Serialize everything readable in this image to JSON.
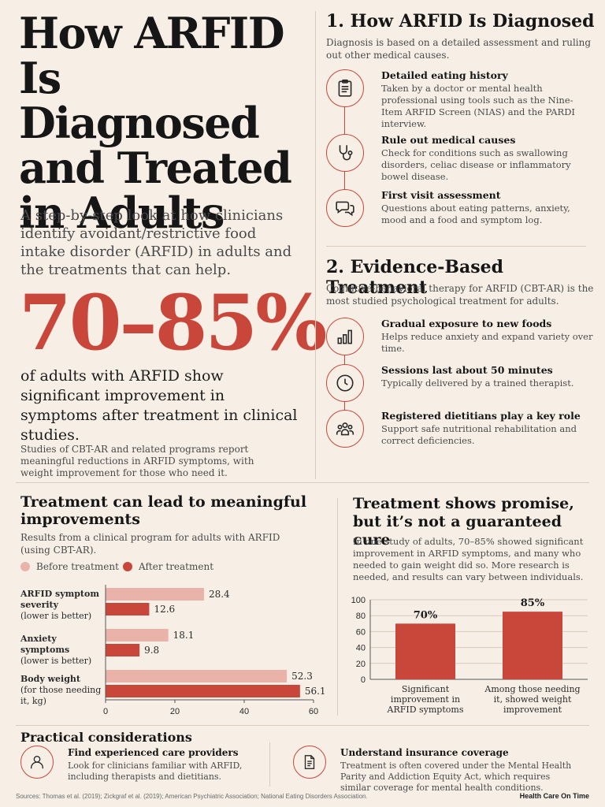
{
  "hero": {
    "title": "How ARFID Is Diagnosed and Treated in Adults",
    "subtitle": "A step-by-step look at how clinicians identify avoidant/restrictive food intake disorder (ARFID) in adults and the treatments that can help.",
    "stat": "70–85%",
    "stat_text": "of adults with ARFID show significant improvement in symptoms after treatment in clinical studies.",
    "stat_note": "Studies of CBT-AR and related programs report meaningful reductions in ARFID symptoms, with weight improvement for those who need it."
  },
  "diagnosis": {
    "title": "1. How ARFID Is Diagnosed",
    "desc": "Diagnosis is based on a detailed assessment and ruling out other medical causes.",
    "items": [
      {
        "icon": "clipboard-icon",
        "title": "Detailed eating history",
        "text": "Taken by a doctor or mental health professional using tools such as the Nine-Item ARFID Screen (NIAS) and the PARDI interview."
      },
      {
        "icon": "stethoscope-icon",
        "title": "Rule out medical causes",
        "text": "Check for conditions such as swallowing disorders, celiac disease or inflammatory bowel disease."
      },
      {
        "icon": "chat-bubbles-icon",
        "title": "First visit assessment",
        "text": "Questions about eating patterns, anxiety, mood and a food and symptom log."
      }
    ]
  },
  "treatment": {
    "title": "2. Evidence-Based Treatment",
    "desc": "Cognitive-behavioral therapy for ARFID (CBT-AR) is the most studied psychological treatment for adults.",
    "items": [
      {
        "icon": "bar-chart-icon",
        "title": "Gradual exposure to new foods",
        "text": "Helps reduce anxiety and expand variety over time."
      },
      {
        "icon": "clock-icon",
        "title": "Sessions last about 50 minutes",
        "text": "Typically delivered by a trained therapist."
      },
      {
        "icon": "people-group-icon",
        "title": "Registered dietitians play a key role",
        "text": "Support safe nutritional rehabilitation and correct deficiencies."
      }
    ]
  },
  "bar_chart": {
    "title": "Treatment can lead to meaningful improvements",
    "desc": "Results from a clinical program for adults with ARFID (using CBT-AR).",
    "legend_before": "Before treatment",
    "legend_after": "After treatment",
    "cat_labels": [
      {
        "name": "ARFID symptom severity",
        "note": "(lower is better)"
      },
      {
        "name": "Anxiety symptoms",
        "note": "(lower is better)"
      },
      {
        "name": "Body weight",
        "note": "(for those needing it, kg)"
      }
    ],
    "colors": {
      "before": "#eab3a9",
      "after": "#c8473a"
    }
  },
  "promise": {
    "title": "Treatment shows promise, but it’s not a guaranteed cure",
    "desc": "In one study of adults, 70–85% showed significant improvement in ARFID symptoms, and many who needed to gain weight did so. More research is needed, and results can vary between individuals."
  },
  "chart_data": [
    {
      "type": "bar",
      "orientation": "horizontal",
      "categories": [
        "ARFID symptom severity (lower is better)",
        "Anxiety symptoms (lower is better)",
        "Body weight (for those needing it, kg)"
      ],
      "series": [
        {
          "name": "Before treatment",
          "values": [
            28.4,
            18.1,
            52.3
          ]
        },
        {
          "name": "After treatment",
          "values": [
            12.6,
            9.8,
            56.1
          ]
        }
      ],
      "xlim": [
        0,
        60
      ],
      "xticks": [
        0,
        20,
        40,
        60
      ],
      "legend": "top"
    },
    {
      "type": "bar",
      "categories": [
        "Significant improvement in ARFID symptoms",
        "Among those needing it, showed weight improvement"
      ],
      "values": [
        70,
        85
      ],
      "value_labels": [
        "70%",
        "85%"
      ],
      "ylim": [
        0,
        100
      ],
      "yticks": [
        0,
        20,
        40,
        60,
        80,
        100
      ],
      "grid": true
    }
  ],
  "practical": {
    "title": "Practical considerations",
    "items": [
      {
        "icon": "person-icon",
        "title": "Find experienced care providers",
        "text": "Look for clinicians familiar with ARFID, including therapists and dietitians."
      },
      {
        "icon": "document-icon",
        "title": "Understand insurance coverage",
        "text": "Treatment is often covered under the Mental Health Parity and Addiction Equity Act, which requires similar coverage for mental health conditions."
      }
    ]
  },
  "footer": {
    "sources": "Sources: Thomas et al. (2019); Zickgraf et al. (2019); American Psychiatric Association; National Eating Disorders Association.",
    "brand": "Health Care On Time"
  }
}
